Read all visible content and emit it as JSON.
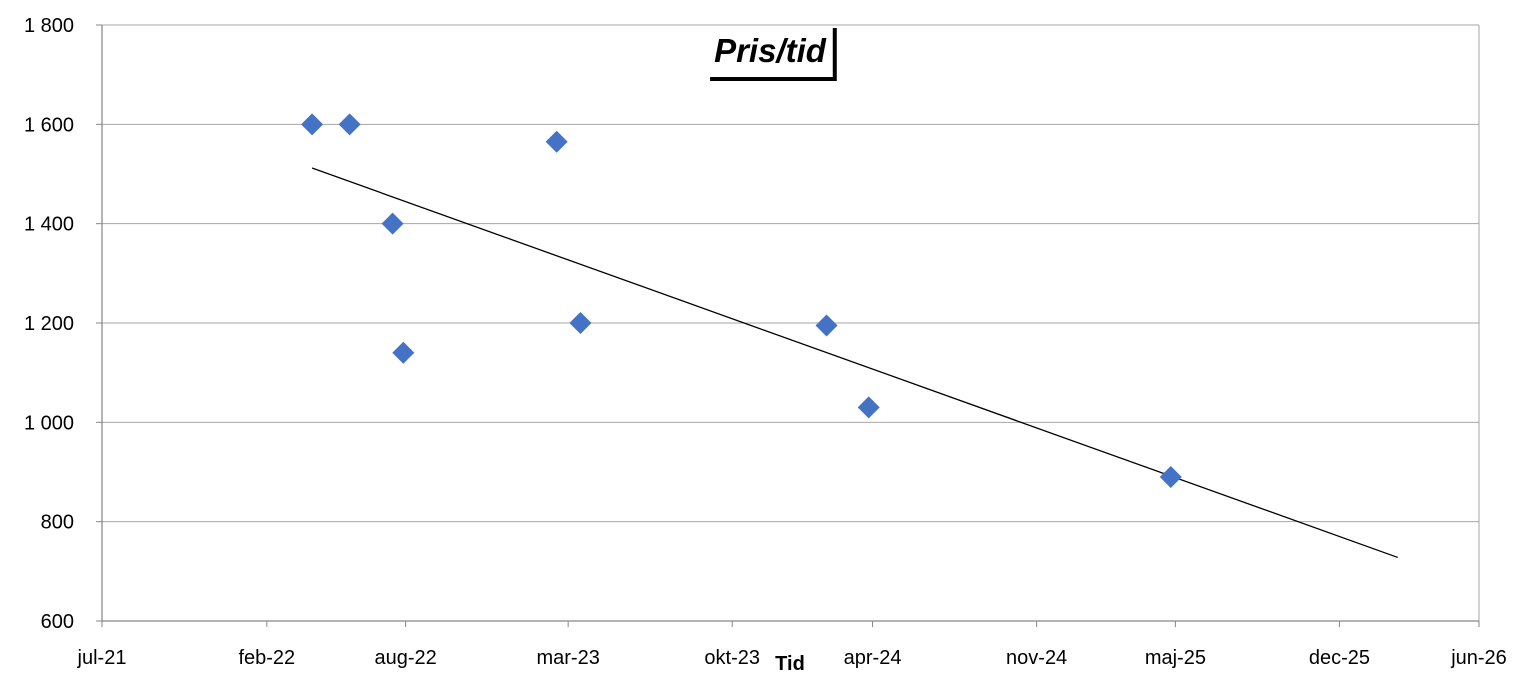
{
  "chart_data": {
    "type": "scatter",
    "title": "Pris/tid",
    "xlabel": "Tid",
    "ylabel": "",
    "ylim": [
      600,
      1800
    ],
    "xlim": [
      "2021-07-01",
      "2026-06-01"
    ],
    "yticks": [
      {
        "value": 600,
        "label": "600"
      },
      {
        "value": 800,
        "label": "800"
      },
      {
        "value": 1000,
        "label": "1 000"
      },
      {
        "value": 1200,
        "label": "1 200"
      },
      {
        "value": 1400,
        "label": "1 400"
      },
      {
        "value": 1600,
        "label": "1 600"
      },
      {
        "value": 1800,
        "label": "1 800"
      }
    ],
    "xticks": [
      {
        "date": "2021-07-01",
        "label": "jul-21"
      },
      {
        "date": "2022-02-01",
        "label": "feb-22"
      },
      {
        "date": "2022-08-01",
        "label": "aug-22"
      },
      {
        "date": "2023-03-01",
        "label": "mar-23"
      },
      {
        "date": "2023-10-01",
        "label": "okt-23"
      },
      {
        "date": "2024-04-01",
        "label": "apr-24"
      },
      {
        "date": "2024-11-01",
        "label": "nov-24"
      },
      {
        "date": "2025-05-01",
        "label": "maj-25"
      },
      {
        "date": "2025-12-01",
        "label": "dec-25"
      },
      {
        "date": "2026-06-01",
        "label": "jun-26"
      }
    ],
    "grid": {
      "horizontal": true,
      "vertical": false
    },
    "marker": "diamond",
    "colors": {
      "points": "#4472C4",
      "trend": "#000000",
      "grid": "#a6a6a6",
      "axis": "#868686"
    },
    "series": [
      {
        "points": [
          {
            "x": "2022-04-01",
            "y": 1600
          },
          {
            "x": "2022-05-20",
            "y": 1600
          },
          {
            "x": "2022-07-15",
            "y": 1400
          },
          {
            "x": "2022-07-29",
            "y": 1140
          },
          {
            "x": "2023-02-14",
            "y": 1565
          },
          {
            "x": "2023-03-17",
            "y": 1200
          },
          {
            "x": "2024-02-01",
            "y": 1195
          },
          {
            "x": "2024-03-27",
            "y": 1030
          },
          {
            "x": "2025-04-25",
            "y": 890
          }
        ]
      }
    ],
    "trendline": {
      "type": "linear",
      "start": {
        "x": "2022-04-01",
        "y": 1512
      },
      "end": {
        "x": "2026-02-15",
        "y": 728
      }
    }
  }
}
